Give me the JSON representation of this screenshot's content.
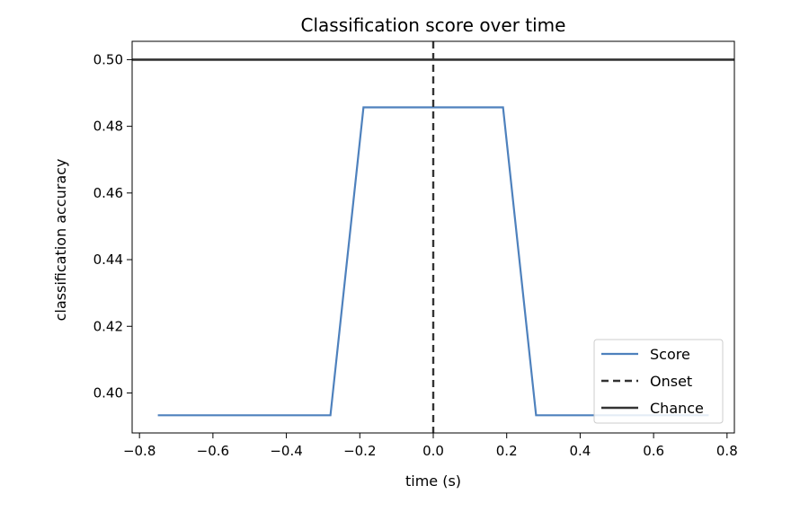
{
  "chart_data": {
    "type": "line",
    "title": "Classification score over time",
    "xlabel": "time (s)",
    "ylabel": "classification accuracy",
    "xlim": [
      -0.82,
      0.82
    ],
    "ylim": [
      0.388,
      0.5055
    ],
    "xticks": [
      -0.8,
      -0.6,
      -0.4,
      -0.2,
      0.0,
      0.2,
      0.4,
      0.6,
      0.8
    ],
    "xtick_labels": [
      "−0.8",
      "−0.6",
      "−0.4",
      "−0.2",
      "0.0",
      "0.2",
      "0.4",
      "0.6",
      "0.8"
    ],
    "yticks": [
      0.4,
      0.42,
      0.44,
      0.46,
      0.48,
      0.5
    ],
    "ytick_labels": [
      "0.40",
      "0.42",
      "0.44",
      "0.46",
      "0.48",
      "0.50"
    ],
    "grid": false,
    "legend_position": "lower-right",
    "series": [
      {
        "name": "Score",
        "style": "solid",
        "color": "#4e81bd",
        "x": [
          -0.75,
          -0.28,
          -0.19,
          0.19,
          0.28,
          0.75
        ],
        "y": [
          0.3933,
          0.3933,
          0.4857,
          0.4857,
          0.3933,
          0.3933
        ]
      },
      {
        "name": "Onset",
        "style": "dashed",
        "color": "#333333",
        "orientation": "vertical",
        "x_value": 0.0
      },
      {
        "name": "Chance",
        "style": "solid",
        "color": "#333333",
        "orientation": "horizontal",
        "y_value": 0.5
      }
    ]
  }
}
